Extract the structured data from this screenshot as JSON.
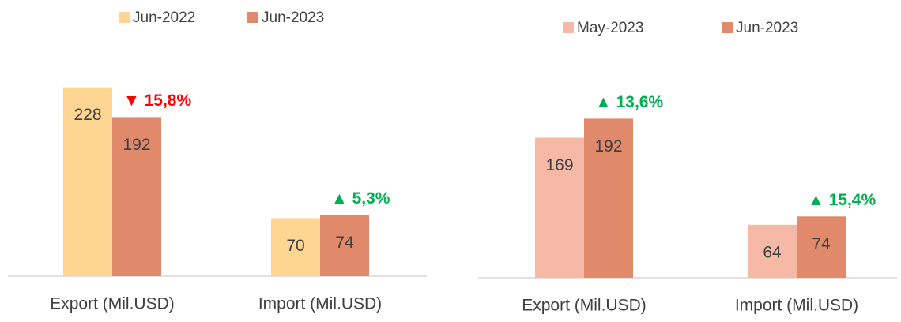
{
  "chart_data": [
    {
      "type": "bar",
      "categories": [
        "Export (Mil.USD)",
        "Import (Mil.USD)"
      ],
      "series": [
        {
          "name": "Jun-2022",
          "color": "#fed592",
          "values": [
            228,
            70
          ]
        },
        {
          "name": "Jun-2023",
          "color": "#e08a6b",
          "values": [
            192,
            74
          ]
        }
      ],
      "annotations": [
        "▼ 15,8%",
        "▲ 5,3%"
      ],
      "annotation_colors": [
        "#ff0000",
        "#00b050"
      ]
    },
    {
      "type": "bar",
      "categories": [
        "Export (Mil.USD)",
        "Import (Mil.USD)"
      ],
      "series": [
        {
          "name": "May-2023",
          "color": "#f6b9a6",
          "values": [
            169,
            64
          ]
        },
        {
          "name": "Jun-2023",
          "color": "#e08a6b",
          "values": [
            192,
            74
          ]
        }
      ],
      "annotations": [
        "▲ 13,6%",
        "▲ 15,4%"
      ],
      "annotation_colors": [
        "#00b050",
        "#00b050"
      ]
    }
  ]
}
